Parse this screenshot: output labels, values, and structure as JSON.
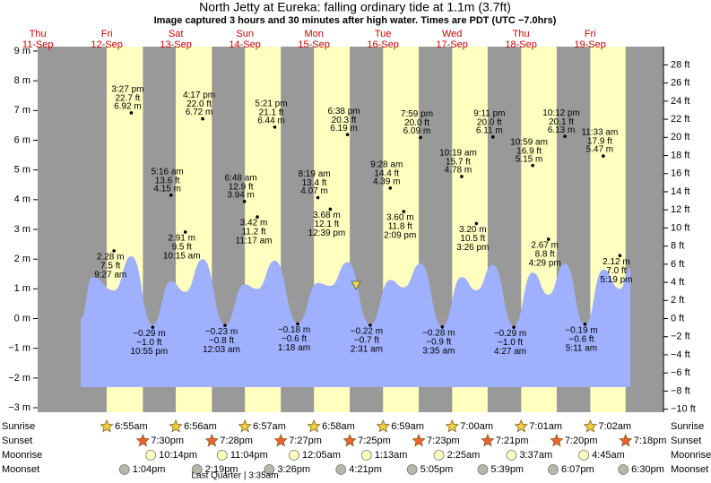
{
  "chart_data": {
    "type": "tide",
    "title": "North Jetty at Eureka: falling  ordinary tide at 1.1m (3.7ft)",
    "subtitle": "Image captured 3 hours and 30 minutes after high water. Times are PDT (UTC −7.0hrs)",
    "weekdays": [
      "Thu",
      "Fri",
      "Sat",
      "Sun",
      "Mon",
      "Tue",
      "Wed",
      "Thu",
      "Fri"
    ],
    "xticks": [
      {
        "value": 11,
        "label": "11-Sep"
      },
      {
        "value": 12,
        "label": "12-Sep"
      },
      {
        "value": 13,
        "label": "13-Sep"
      },
      {
        "value": 14,
        "label": "14-Sep"
      },
      {
        "value": 15,
        "label": "15-Sep"
      },
      {
        "value": 16,
        "label": "16-Sep"
      },
      {
        "value": 17,
        "label": "17-Sep"
      },
      {
        "value": 18,
        "label": "18-Sep"
      },
      {
        "value": 19,
        "label": "19-Sep"
      }
    ],
    "xlim": [
      11.288,
      20.353
    ],
    "ylim": [
      -3.15,
      9.15
    ],
    "yticks": [
      {
        "value": 9,
        "label": "9 m"
      },
      {
        "value": 8,
        "label": "8 m"
      },
      {
        "value": 7,
        "label": "7 m"
      },
      {
        "value": 6,
        "label": "6 m"
      },
      {
        "value": 5,
        "label": "5 m"
      },
      {
        "value": 4,
        "label": "4 m"
      },
      {
        "value": 3,
        "label": "3 m"
      },
      {
        "value": 2,
        "label": "2 m"
      },
      {
        "value": 1,
        "label": "1 m"
      },
      {
        "value": 0,
        "label": "0 m"
      },
      {
        "value": -1,
        "label": "−1 m"
      },
      {
        "value": -2,
        "label": "−2 m"
      },
      {
        "value": -3,
        "label": "−3 m"
      }
    ],
    "y2lim": [
      -10.335,
      30.02
    ],
    "y2ticks": [
      {
        "value": 28,
        "label": "28 ft"
      },
      {
        "value": 26,
        "label": "26 ft"
      },
      {
        "value": 24,
        "label": "24 ft"
      },
      {
        "value": 22,
        "label": "22 ft"
      },
      {
        "value": 20,
        "label": "20 ft"
      },
      {
        "value": 18,
        "label": "18 ft"
      },
      {
        "value": 16,
        "label": "16 ft"
      },
      {
        "value": 14,
        "label": "14 ft"
      },
      {
        "value": 12,
        "label": "12 ft"
      },
      {
        "value": 10,
        "label": "10 ft"
      },
      {
        "value": 8,
        "label": "8 ft"
      },
      {
        "value": 6,
        "label": "6 ft"
      },
      {
        "value": 4,
        "label": "4 ft"
      },
      {
        "value": 2,
        "label": "2 ft"
      },
      {
        "value": 0,
        "label": "0 ft"
      },
      {
        "value": -2,
        "label": "−2 ft"
      },
      {
        "value": -4,
        "label": "−4 ft"
      },
      {
        "value": -6,
        "label": "−6 ft"
      },
      {
        "value": -8,
        "label": "−8 ft"
      },
      {
        "value": -10,
        "label": "−10 ft"
      }
    ],
    "night_color": "#999999",
    "day_color": "#ffffbf",
    "tide_curve": {
      "color": "#9fb0ff",
      "x": [
        11.912,
        12.08,
        12.394,
        12.644,
        12.955,
        13.219,
        13.427,
        13.678,
        14.002,
        14.283,
        14.47,
        14.723,
        15.054,
        15.347,
        15.527,
        15.776,
        16.105,
        16.395,
        16.59,
        16.833,
        17.149,
        17.43,
        17.643,
        17.883,
        18.185,
        18.458,
        18.687,
        18.925,
        19.216,
        19.481,
        19.722,
        19.873
      ],
      "values": [
        0,
        1.4,
        0.95,
        2.1,
        -0.2,
        1.25,
        0.9,
        2.0,
        -0.2,
        1.15,
        1.0,
        1.95,
        -0.15,
        1.2,
        1.1,
        1.9,
        -0.2,
        1.3,
        1.05,
        1.85,
        -0.25,
        1.4,
        0.95,
        1.8,
        -0.25,
        1.55,
        0.8,
        1.85,
        -0.2,
        1.65,
        1.0,
        1.7
      ]
    },
    "now": {
      "x": 15.9,
      "value": 1.1,
      "color": "#e8e040"
    },
    "extremes": {
      "x": [
        12.394,
        12.644,
        12.955,
        13.219,
        13.427,
        13.678,
        14.002,
        14.283,
        14.47,
        14.723,
        15.054,
        15.347,
        15.527,
        15.776,
        16.105,
        16.395,
        16.59,
        16.833,
        17.149,
        17.43,
        17.643,
        17.883,
        18.185,
        18.458,
        18.687,
        18.925,
        19.216,
        19.481,
        19.722
      ],
      "values": [
        2.28,
        6.92,
        -0.29,
        4.15,
        2.91,
        6.72,
        -0.23,
        3.94,
        3.42,
        6.44,
        -0.18,
        4.07,
        3.68,
        6.19,
        -0.22,
        4.39,
        3.6,
        6.09,
        -0.28,
        4.78,
        3.2,
        6.11,
        -0.29,
        5.15,
        2.67,
        6.13,
        -0.19,
        5.47,
        2.12
      ],
      "value_labels": [
        "2.28 m",
        "6.92 m",
        "−0.29 m",
        "4.15 m",
        "2.91 m",
        "6.72 m",
        "−0.23 m",
        "3.94 m",
        "3.42 m",
        "6.44 m",
        "−0.18 m",
        "4.07 m",
        "3.68 m",
        "6.19 m",
        "−0.22 m",
        "4.39 m",
        "3.60 m",
        "6.09 m",
        "−0.28 m",
        "4.78 m",
        "3.20 m",
        "6.11 m",
        "−0.29 m",
        "5.15 m",
        "2.67 m",
        "6.13 m",
        "−0.19 m",
        "5.47 m",
        "2.12 m"
      ],
      "ft_labels": [
        "7.5 ft",
        "22.7 ft",
        "−1.0 ft",
        "13.6 ft",
        "9.5 ft",
        "22.0 ft",
        "−0.8 ft",
        "12.9 ft",
        "11.2 ft",
        "21.1 ft",
        "−0.6 ft",
        "13.4 ft",
        "12.1 ft",
        "20.3 ft",
        "−0.7 ft",
        "14.4 ft",
        "11.8 ft",
        "20.0 ft",
        "−0.9 ft",
        "15.7 ft",
        "10.5 ft",
        "20.0 ft",
        "−1.0 ft",
        "16.9 ft",
        "8.8 ft",
        "20.1 ft",
        "−0.6 ft",
        "17.9 ft",
        "7.0 ft"
      ],
      "times": [
        "9:27 am",
        "3:27 pm",
        "10:55 pm",
        "5:16 am",
        "10:15 am",
        "4:17 pm",
        "12:03 am",
        "6:48 am",
        "11:17 am",
        "5:21 pm",
        "1:18 am",
        "8:19 am",
        "12:39 pm",
        "6:38 pm",
        "2:31 am",
        "9:28 am",
        "2:09 pm",
        "7:59 pm",
        "3:35 am",
        "10:19 am",
        "3:26 pm",
        "9:11 pm",
        "4:27 am",
        "10:59 am",
        "4:29 pm",
        "10:12 pm",
        "5:11 am",
        "11:33 am",
        "5:19 pm"
      ]
    },
    "rows": [
      {
        "name": "Sunrise",
        "color": "#f0d040",
        "x": [
          12.288,
          13.289,
          14.29,
          15.29,
          16.291,
          17.292,
          18.292,
          19.293
        ],
        "labels": [
          "6:55am",
          "6:56am",
          "6:57am",
          "6:58am",
          "6:59am",
          "7:00am",
          "7:01am",
          "7:02am"
        ]
      },
      {
        "name": "Sunset",
        "color": "#f06030",
        "x": [
          12.8125,
          13.811,
          14.81,
          15.809,
          16.808,
          17.806,
          18.806,
          19.804
        ],
        "labels": [
          "7:30pm",
          "7:28pm",
          "7:27pm",
          "7:25pm",
          "7:23pm",
          "7:21pm",
          "7:20pm",
          "7:18pm"
        ]
      },
      {
        "name": "Moonrise",
        "color": "#ffffc0",
        "x": [
          12.926,
          13.961,
          15.003,
          16.051,
          17.101,
          18.151,
          19.198
        ],
        "labels": [
          "10:14pm",
          "11:04pm",
          "12:05am",
          "1:13am",
          "2:25am",
          "3:37am",
          "4:45am"
        ]
      },
      {
        "name": "Moonset",
        "color": "#b8b8a8",
        "x": [
          12.544,
          13.597,
          14.643,
          15.681,
          16.712,
          17.735,
          18.755,
          19.771
        ],
        "labels": [
          "1:04pm",
          "2:19pm",
          "3:26pm",
          "4:21pm",
          "5:05pm",
          "5:39pm",
          "6:07pm",
          "6:30pm"
        ]
      }
    ],
    "moon_phase": "Last Quarter | 3:35am"
  }
}
